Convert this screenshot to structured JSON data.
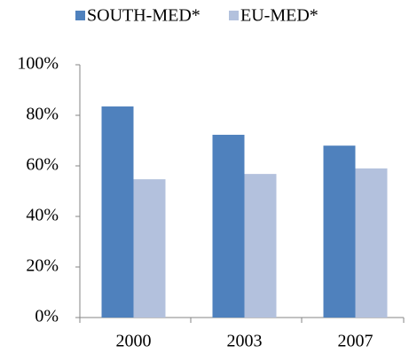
{
  "chart_data": {
    "type": "bar",
    "categories": [
      "2000",
      "2003",
      "2007"
    ],
    "series": [
      {
        "name": "SOUTH-MED*",
        "color": "#4f81bd",
        "values": [
          83.5,
          72.3,
          68
        ]
      },
      {
        "name": "EU-MED*",
        "color": "#b3c1dd",
        "values": [
          54.7,
          56.8,
          59
        ]
      }
    ],
    "ylim": [
      0,
      100
    ],
    "yticks": [
      {
        "value": 0,
        "label": "0%"
      },
      {
        "value": 20,
        "label": "20%"
      },
      {
        "value": 40,
        "label": "40%"
      },
      {
        "value": 60,
        "label": "60%"
      },
      {
        "value": 80,
        "label": "80%"
      },
      {
        "value": 100,
        "label": "100%"
      }
    ],
    "grid": false,
    "legend": "top"
  }
}
